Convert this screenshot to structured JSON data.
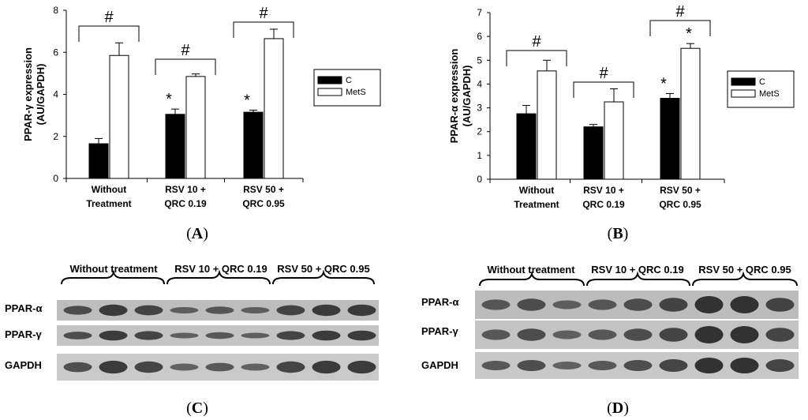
{
  "chart_data": [
    {
      "type": "bar",
      "panel": "A",
      "ylabel": [
        "PPAR-γ expression",
        "(AU/GAPDH)"
      ],
      "ylim": [
        0,
        8
      ],
      "yticks": [
        "0",
        "2",
        "4",
        "6",
        "8"
      ],
      "categories": [
        [
          "Without",
          "Treatment"
        ],
        [
          "RSV 10 +",
          "QRC 0.19"
        ],
        [
          "RSV 50 +",
          "QRC 0.95"
        ]
      ],
      "series": [
        {
          "name": "C",
          "values": [
            1.65,
            3.05,
            3.15
          ],
          "errors": [
            0.25,
            0.25,
            0.1
          ]
        },
        {
          "name": "MetS",
          "values": [
            5.85,
            4.85,
            6.65
          ],
          "errors": [
            0.6,
            0.12,
            0.45
          ]
        }
      ],
      "significance": {
        "star": "*",
        "hash": "#",
        "star_on": [
          false,
          true,
          true
        ]
      },
      "legend": {
        "position": "right",
        "labels": [
          "C",
          "MetS"
        ]
      }
    },
    {
      "type": "bar",
      "panel": "B",
      "ylabel": [
        "PPAR-α expression",
        "(AU/GAPDH)"
      ],
      "ylim": [
        0,
        7
      ],
      "yticks": [
        "0",
        "1",
        "2",
        "3",
        "4",
        "5",
        "6",
        "7"
      ],
      "categories": [
        [
          "Without",
          "Treatment"
        ],
        [
          "RSV 10 +",
          "QRC 0.19"
        ],
        [
          "RSV 50 +",
          "QRC 0.95"
        ]
      ],
      "series": [
        {
          "name": "C",
          "values": [
            2.75,
            2.2,
            3.4
          ],
          "errors": [
            0.35,
            0.1,
            0.2
          ]
        },
        {
          "name": "MetS",
          "values": [
            4.55,
            3.25,
            5.5
          ],
          "errors": [
            0.45,
            0.55,
            0.2
          ]
        }
      ],
      "significance": {
        "star": "*",
        "hash": "#",
        "star_on": [
          false,
          false,
          true
        ],
        "star_on_mets": [
          false,
          false,
          true
        ]
      },
      "legend": {
        "position": "right",
        "labels": [
          "C",
          "MetS"
        ]
      }
    }
  ],
  "panel_labels": {
    "A": "A",
    "B": "B",
    "C": "C",
    "D": "D"
  },
  "blots": [
    {
      "panel": "C",
      "groups": [
        "Without treatment",
        "RSV 10 + QRC 0.19",
        "RSV 50 + QRC 0.95"
      ],
      "rows": [
        "PPAR-α",
        "PPAR-γ",
        "GAPDH"
      ]
    },
    {
      "panel": "D",
      "groups": [
        "Without treatment",
        "RSV 10 + QRC 0.19",
        "RSV 50 + QRC 0.95"
      ],
      "rows": [
        "PPAR-α",
        "PPAR-γ",
        "GAPDH"
      ]
    }
  ]
}
